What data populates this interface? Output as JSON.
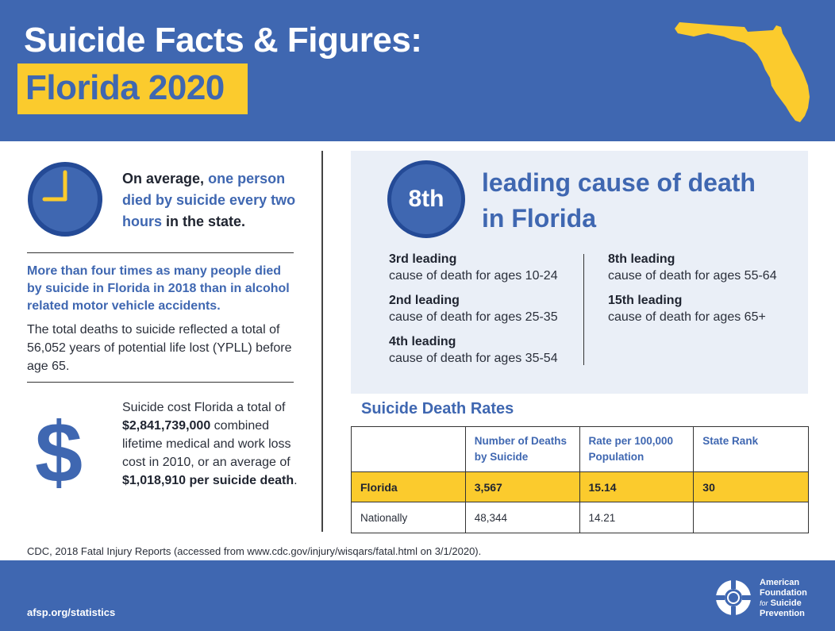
{
  "header": {
    "title_line1": "Suicide Facts & Figures:",
    "title_line2": "Florida 2020",
    "map_icon": "florida-state-map-icon",
    "colors": {
      "primary_blue": "#3f67b1",
      "accent_yellow": "#fbcb2d"
    }
  },
  "left": {
    "clock_icon": "clock-icon",
    "stat1": {
      "prefix": "On average,",
      "highlight1": "one person died by suicide every two hours",
      "suffix": "in the state."
    },
    "stat2": "More than four times as many people died by suicide in Florida in 2018 than in alcohol related motor vehicle accidents.",
    "stat3": "The total deaths to suicide reflected a total of 56,052 years of potential life lost (YPLL) before age 65.",
    "dollar_icon": "$",
    "stat4": {
      "p1": "Suicide cost Florida a total of",
      "b1": "$2,841,739,000",
      "p2": "combined lifetime medical and work loss cost in 2010, or an average of",
      "b2": "$1,018,910 per suicide death",
      "p3": "."
    }
  },
  "panel": {
    "badge": "8th",
    "title": "leading cause of death in Florida",
    "ranks": [
      {
        "rank": "3rd leading",
        "desc": "cause of death for ages 10-24"
      },
      {
        "rank": "2nd leading",
        "desc": "cause of death for ages 25-35"
      },
      {
        "rank": "4th leading",
        "desc": "cause of death for ages 35-54"
      },
      {
        "rank": "8th leading",
        "desc": "cause of death for ages 55-64"
      },
      {
        "rank": "15th leading",
        "desc": "cause of death for ages 65+"
      }
    ]
  },
  "table": {
    "title": "Suicide Death Rates",
    "headers": [
      "",
      "Number of Deaths by Suicide",
      "Rate per 100,000 Population",
      "State Rank"
    ],
    "rows": [
      [
        "Florida",
        "3,567",
        "15.14",
        "30"
      ],
      [
        "Nationally",
        "48,344",
        "14.21",
        ""
      ]
    ]
  },
  "source": "CDC, 2018 Fatal Injury Reports (accessed from www.cdc.gov/injury/wisqars/fatal.html on 3/1/2020).",
  "footer": {
    "url": "afsp.org/statistics",
    "org_line1": "American",
    "org_line2": "Foundation",
    "org_for": "for",
    "org_line3": "Suicide",
    "org_line4": "Prevention",
    "logo_icon": "lifebuoy-logo-icon"
  }
}
